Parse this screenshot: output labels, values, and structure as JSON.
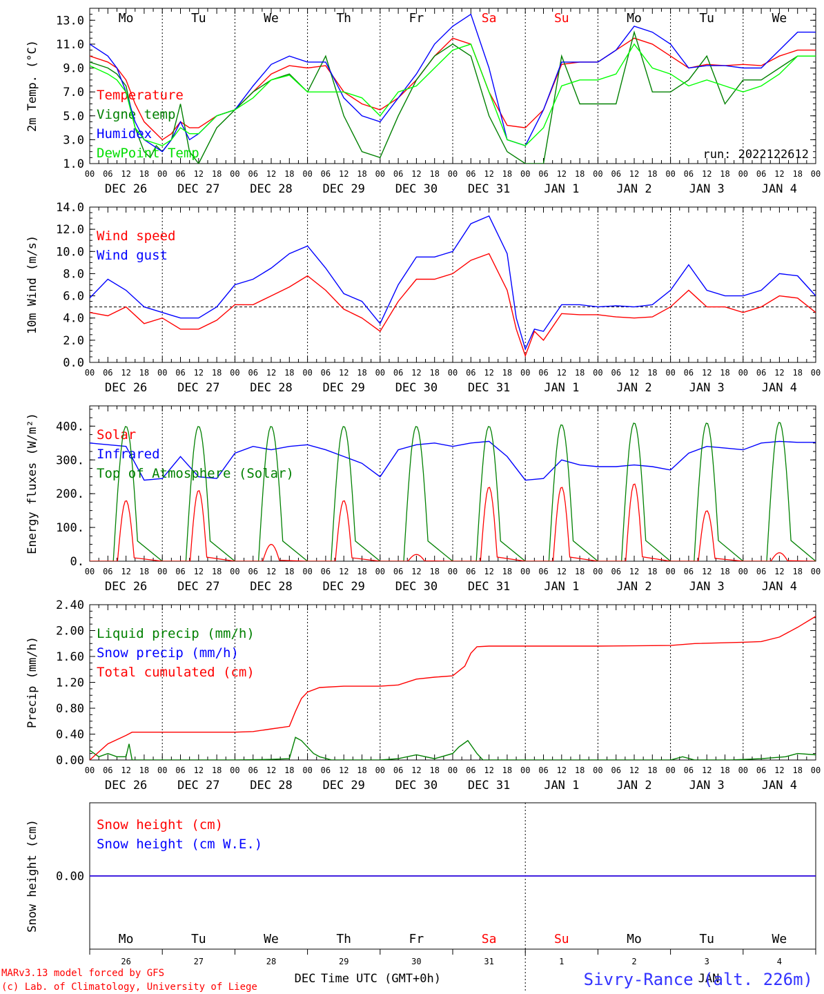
{
  "header": {
    "days": [
      "Mo",
      "Tu",
      "We",
      "Th",
      "Fr",
      "Sa",
      "Su",
      "Mo",
      "Tu",
      "We"
    ],
    "weekend_days": [
      "Sa",
      "Su"
    ],
    "dates": [
      "DEC 26",
      "DEC 27",
      "DEC 28",
      "DEC 29",
      "DEC 30",
      "DEC 31",
      "JAN  1",
      "JAN  2",
      "JAN  3",
      "JAN  4"
    ],
    "hour_ticks": [
      "00",
      "06",
      "12",
      "18"
    ],
    "final_tick": "00",
    "day_numbers": [
      "26",
      "27",
      "28",
      "29",
      "30",
      "31",
      "1",
      "2",
      "3",
      "4"
    ],
    "month_left": "DEC",
    "month_right": "JAN"
  },
  "footer": {
    "credit_line1": "MARv3.13 model forced by GFS",
    "credit_line2": "(c) Lab. of Climatology, University of Liege",
    "xlabel": "Time UTC (GMT+0h)",
    "station": "Sivry-Rance (alt. 226m)"
  },
  "colors": {
    "red": "#ff0000",
    "green": "#008000",
    "blue": "#0000ff",
    "light_green": "#00ff00",
    "purple": "#800080",
    "axis": "#000000"
  },
  "chart_data": [
    {
      "type": "line",
      "ylabel": "2m Temp. (°C)",
      "ylim": [
        1.0,
        14.0
      ],
      "yticks": [
        "1.0",
        "3.0",
        "5.0",
        "7.0",
        "9.0",
        "11.0",
        "13.0"
      ],
      "annotation": "run: 2022122612",
      "x_unit": "hours since DEC 26 00 UTC",
      "series": [
        {
          "name": "Temperature",
          "color": "#ff0000",
          "x": [
            0,
            6,
            9,
            12,
            15,
            18,
            24,
            27,
            30,
            33,
            36,
            42,
            48,
            54,
            60,
            66,
            72,
            78,
            84,
            90,
            96,
            102,
            108,
            114,
            120,
            126,
            132,
            138,
            144,
            150,
            156,
            162,
            168,
            174,
            180,
            186,
            192,
            198,
            204,
            210,
            216,
            222,
            228,
            234,
            240
          ],
          "y": [
            10,
            9.5,
            9,
            8,
            6,
            4.5,
            3,
            3.5,
            4.5,
            4,
            4,
            5,
            5.5,
            7,
            8.5,
            9.2,
            9,
            9.2,
            7,
            6,
            5.5,
            6.5,
            8,
            10,
            11.5,
            11,
            7,
            4.2,
            4,
            5.5,
            9.3,
            9.5,
            9.5,
            10.5,
            11.5,
            11,
            10,
            9,
            9.3,
            9.2,
            9.3,
            9.2,
            10,
            10.5,
            10.5
          ]
        },
        {
          "name": "Vigne temp",
          "color": "#008000",
          "x": [
            0,
            6,
            9,
            12,
            15,
            18,
            20,
            22,
            24,
            27,
            30,
            33,
            36,
            42,
            48,
            54,
            60,
            66,
            72,
            78,
            84,
            90,
            96,
            102,
            108,
            114,
            120,
            126,
            132,
            138,
            144,
            150,
            156,
            162,
            168,
            174,
            180,
            186,
            192,
            198,
            204,
            210,
            216,
            222,
            228,
            234,
            240
          ],
          "y": [
            9.5,
            9,
            8.5,
            7.5,
            4,
            2,
            1.5,
            2.5,
            2,
            3,
            6,
            2,
            1,
            4,
            5.5,
            7,
            8,
            8.5,
            7,
            10,
            5,
            2,
            1.5,
            5,
            8,
            10,
            11,
            10,
            5,
            2,
            1,
            1,
            10,
            6,
            6,
            6,
            12,
            7,
            7,
            8,
            10,
            6,
            8,
            8,
            9,
            10,
            10
          ]
        },
        {
          "name": "Humidex",
          "color": "#0000ff",
          "x": [
            0,
            6,
            9,
            12,
            15,
            18,
            24,
            27,
            30,
            33,
            36,
            42,
            48,
            54,
            60,
            66,
            72,
            78,
            84,
            90,
            96,
            102,
            108,
            114,
            120,
            126,
            132,
            138,
            144,
            150,
            156,
            162,
            168,
            174,
            180,
            186,
            192,
            198,
            204,
            210,
            216,
            222,
            228,
            234,
            240
          ],
          "y": [
            11,
            10,
            9,
            7,
            4.5,
            3,
            2,
            3,
            4.5,
            3,
            3.5,
            5,
            5.5,
            7.5,
            9.3,
            10,
            9.5,
            9.5,
            6.5,
            5,
            4.5,
            6.5,
            8.5,
            11,
            12.5,
            13.5,
            9,
            3,
            2.5,
            5.5,
            9.5,
            9.5,
            9.5,
            10.5,
            12.5,
            12,
            11,
            9,
            9.2,
            9.2,
            9,
            9,
            10.5,
            12,
            12
          ]
        },
        {
          "name": "DewPoint Temp",
          "color": "#00ff00",
          "x": [
            0,
            6,
            9,
            12,
            15,
            18,
            24,
            27,
            30,
            33,
            36,
            42,
            48,
            54,
            60,
            66,
            72,
            78,
            84,
            90,
            96,
            102,
            108,
            114,
            120,
            126,
            132,
            138,
            144,
            150,
            156,
            162,
            168,
            174,
            180,
            186,
            192,
            198,
            204,
            210,
            216,
            222,
            228,
            234,
            240
          ],
          "y": [
            9.2,
            8.5,
            8,
            7,
            4,
            3,
            2.5,
            3,
            4,
            3.5,
            3.5,
            5,
            5.5,
            6.5,
            8,
            8.4,
            7,
            7,
            7,
            6.5,
            5,
            7,
            7.5,
            9,
            10.5,
            11,
            7,
            3,
            2.5,
            4,
            7.5,
            8,
            8,
            8.5,
            11,
            9,
            8.5,
            7.5,
            8,
            7.5,
            7,
            7.5,
            8.5,
            10,
            10
          ]
        }
      ]
    },
    {
      "type": "line",
      "ylabel": "10m Wind (m/s)",
      "ylim": [
        0.0,
        14.0
      ],
      "yticks": [
        "0.0",
        "2.0",
        "4.0",
        "6.0",
        "8.0",
        "10.0",
        "12.0",
        "14.0"
      ],
      "reference_line": 5.0,
      "x_unit": "hours since DEC 26 00 UTC",
      "series": [
        {
          "name": "Wind speed",
          "color": "#ff0000",
          "x": [
            0,
            6,
            12,
            18,
            24,
            30,
            36,
            42,
            48,
            54,
            60,
            66,
            72,
            78,
            84,
            90,
            96,
            102,
            108,
            114,
            120,
            126,
            132,
            138,
            141,
            144,
            147,
            150,
            156,
            162,
            168,
            174,
            180,
            186,
            192,
            198,
            204,
            210,
            216,
            222,
            228,
            234,
            240
          ],
          "y": [
            4.5,
            4.2,
            5,
            3.5,
            4,
            3,
            3,
            3.8,
            5.2,
            5.2,
            6,
            6.8,
            7.8,
            6.5,
            4.8,
            4,
            2.8,
            5.5,
            7.5,
            7.5,
            8,
            9.2,
            9.8,
            6.5,
            3,
            0.6,
            2.8,
            2,
            4.4,
            4.3,
            4.3,
            4.1,
            4,
            4.1,
            5,
            6.5,
            5,
            5,
            4.5,
            5,
            6,
            5.8,
            4.5
          ]
        },
        {
          "name": "Wind gust",
          "color": "#0000ff",
          "x": [
            0,
            6,
            12,
            18,
            24,
            30,
            36,
            42,
            48,
            54,
            60,
            66,
            72,
            78,
            84,
            90,
            96,
            102,
            108,
            114,
            120,
            126,
            132,
            138,
            141,
            144,
            147,
            150,
            156,
            162,
            168,
            174,
            180,
            186,
            192,
            198,
            204,
            210,
            216,
            222,
            228,
            234,
            240
          ],
          "y": [
            5.8,
            7.5,
            6.5,
            5,
            4.5,
            4,
            4,
            5,
            7,
            7.5,
            8.5,
            9.8,
            10.5,
            8.5,
            6.2,
            5.5,
            3.5,
            7,
            9.5,
            9.5,
            10,
            12.5,
            13.2,
            9.8,
            4,
            1.2,
            3,
            2.8,
            5.2,
            5.2,
            5,
            5.1,
            5,
            5.2,
            6.5,
            8.8,
            6.5,
            6,
            6,
            6.5,
            8,
            7.8,
            6
          ]
        }
      ]
    },
    {
      "type": "line",
      "ylabel": "Energy fluxes (W/m²)",
      "ylim": [
        0,
        460
      ],
      "yticks": [
        "0.",
        "100.",
        "200.",
        "300.",
        "400."
      ],
      "x_unit": "hours since DEC 26 00 UTC",
      "solar_peaks_wm2": [
        180,
        210,
        50,
        180,
        20,
        220,
        220,
        230,
        150,
        25
      ],
      "toa_peaks_wm2": [
        400,
        400,
        400,
        400,
        400,
        400,
        405,
        410,
        410,
        412
      ],
      "series": [
        {
          "name": "Solar",
          "color": "#ff0000"
        },
        {
          "name": "Infrared",
          "color": "#0000ff",
          "x": [
            0,
            12,
            18,
            24,
            30,
            36,
            42,
            48,
            54,
            60,
            66,
            72,
            78,
            84,
            90,
            96,
            102,
            108,
            114,
            120,
            126,
            132,
            138,
            144,
            150,
            156,
            162,
            168,
            174,
            180,
            186,
            192,
            198,
            204,
            210,
            216,
            222,
            228,
            234,
            240
          ],
          "y": [
            350,
            340,
            240,
            245,
            310,
            250,
            245,
            320,
            340,
            330,
            340,
            345,
            330,
            310,
            290,
            250,
            330,
            345,
            350,
            340,
            350,
            355,
            310,
            240,
            245,
            300,
            285,
            280,
            280,
            285,
            280,
            270,
            320,
            340,
            335,
            330,
            350,
            355,
            352,
            352
          ]
        },
        {
          "name": "Top of Atmosphere (Solar)",
          "color": "#008000"
        }
      ]
    },
    {
      "type": "line",
      "ylabel": "Precip (mm/h)",
      "ylim": [
        0.0,
        2.4
      ],
      "yticks": [
        "0.00",
        "0.40",
        "0.80",
        "1.20",
        "1.60",
        "2.00",
        "2.40"
      ],
      "x_unit": "hours since DEC 26 00 UTC",
      "series": [
        {
          "name": "Liquid precip (mm/h)",
          "color": "#008000",
          "x": [
            0,
            3,
            6,
            9,
            12,
            13,
            14,
            16,
            20,
            24,
            48,
            60,
            66,
            68,
            70,
            72,
            74,
            76,
            80,
            84,
            96,
            102,
            108,
            114,
            120,
            122,
            125,
            128,
            130,
            132,
            136,
            144,
            192,
            196,
            200,
            212,
            222,
            230,
            234,
            240
          ],
          "y": [
            0.15,
            0.05,
            0.1,
            0.05,
            0.05,
            0.25,
            0,
            0,
            0,
            0,
            0,
            0.01,
            0.02,
            0.35,
            0.3,
            0.2,
            0.1,
            0.05,
            0,
            0,
            0,
            0.02,
            0.08,
            0.02,
            0.1,
            0.2,
            0.3,
            0.1,
            0,
            0,
            0,
            0,
            0,
            0.05,
            0,
            0,
            0.02,
            0.05,
            0.1,
            0.08
          ]
        },
        {
          "name": "Snow precip (mm/h)",
          "color": "#0000ff"
        },
        {
          "name": "Total cumulated (cm)",
          "color": "#ff0000",
          "x": [
            0,
            6,
            12,
            14,
            24,
            48,
            54,
            60,
            66,
            68,
            70,
            72,
            76,
            84,
            96,
            102,
            108,
            114,
            120,
            124,
            126,
            128,
            132,
            144,
            168,
            192,
            200,
            216,
            222,
            228,
            234,
            240
          ],
          "y": [
            0,
            0.25,
            0.38,
            0.43,
            0.43,
            0.43,
            0.44,
            0.48,
            0.52,
            0.75,
            0.95,
            1.05,
            1.12,
            1.14,
            1.14,
            1.16,
            1.25,
            1.28,
            1.3,
            1.45,
            1.65,
            1.75,
            1.76,
            1.76,
            1.76,
            1.77,
            1.8,
            1.82,
            1.83,
            1.9,
            2.05,
            2.22
          ]
        }
      ]
    },
    {
      "type": "line",
      "ylabel": "Snow height (cm)",
      "ylim": [
        -1,
        1
      ],
      "yticks": [
        "0.00"
      ],
      "x_unit": "hours since DEC 26 00 UTC",
      "series": [
        {
          "name": "Snow height (cm)",
          "color": "#ff0000",
          "x": [
            0,
            240
          ],
          "y": [
            0,
            0
          ]
        },
        {
          "name": "Snow height (cm W.E.)",
          "color": "#0000ff",
          "x": [
            0,
            240
          ],
          "y": [
            0,
            0
          ]
        }
      ]
    }
  ]
}
